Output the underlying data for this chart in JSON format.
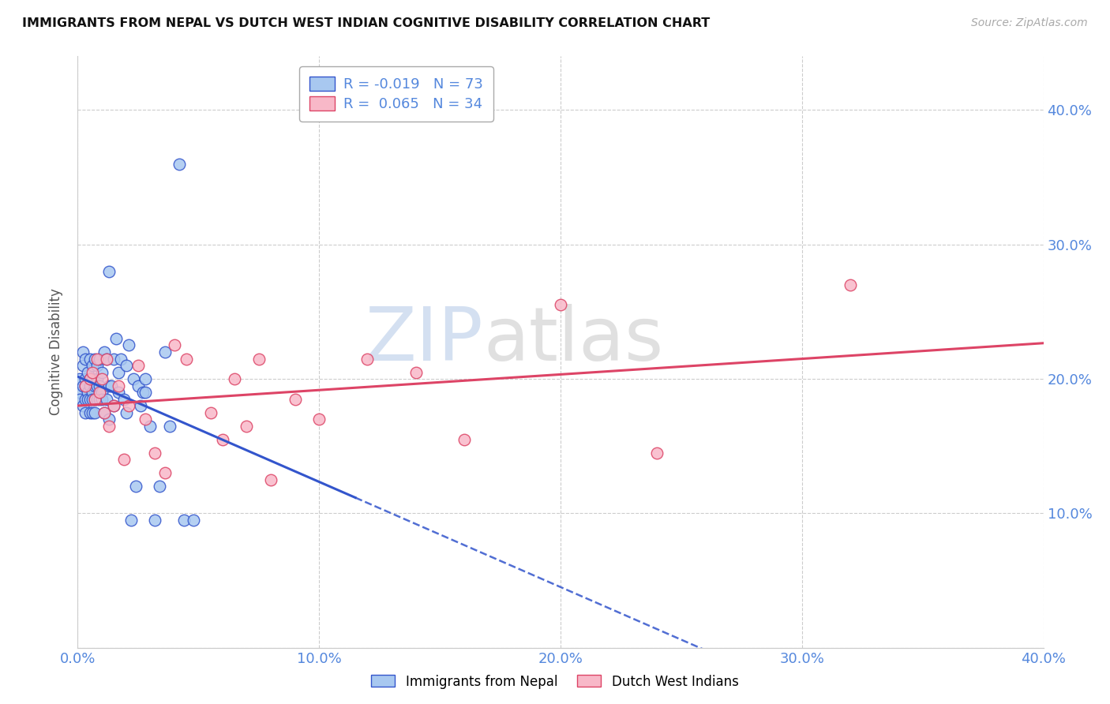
{
  "title": "IMMIGRANTS FROM NEPAL VS DUTCH WEST INDIAN COGNITIVE DISABILITY CORRELATION CHART",
  "source": "Source: ZipAtlas.com",
  "ylabel": "Cognitive Disability",
  "xlim": [
    0.0,
    0.4
  ],
  "ylim": [
    0.0,
    0.44
  ],
  "nepal_R": -0.019,
  "nepal_N": 73,
  "dwi_R": 0.065,
  "dwi_N": 34,
  "nepal_color": "#a8c8f0",
  "dwi_color": "#f8b8c8",
  "trend_nepal_color": "#3355cc",
  "trend_dwi_color": "#dd4466",
  "nepal_scatter_x": [
    0.001,
    0.001,
    0.001,
    0.002,
    0.002,
    0.002,
    0.002,
    0.003,
    0.003,
    0.003,
    0.003,
    0.003,
    0.004,
    0.004,
    0.004,
    0.005,
    0.005,
    0.005,
    0.005,
    0.005,
    0.006,
    0.006,
    0.006,
    0.006,
    0.006,
    0.007,
    0.007,
    0.007,
    0.007,
    0.008,
    0.008,
    0.008,
    0.008,
    0.009,
    0.009,
    0.009,
    0.01,
    0.01,
    0.01,
    0.011,
    0.011,
    0.012,
    0.012,
    0.013,
    0.013,
    0.013,
    0.014,
    0.015,
    0.015,
    0.016,
    0.017,
    0.017,
    0.018,
    0.019,
    0.02,
    0.02,
    0.021,
    0.022,
    0.023,
    0.024,
    0.025,
    0.026,
    0.027,
    0.028,
    0.028,
    0.03,
    0.032,
    0.034,
    0.036,
    0.038,
    0.042,
    0.044,
    0.048
  ],
  "nepal_scatter_y": [
    0.19,
    0.185,
    0.2,
    0.195,
    0.21,
    0.18,
    0.22,
    0.215,
    0.2,
    0.185,
    0.175,
    0.195,
    0.205,
    0.19,
    0.185,
    0.215,
    0.195,
    0.185,
    0.175,
    0.2,
    0.21,
    0.19,
    0.185,
    0.175,
    0.2,
    0.215,
    0.195,
    0.185,
    0.175,
    0.21,
    0.195,
    0.185,
    0.2,
    0.215,
    0.195,
    0.185,
    0.205,
    0.19,
    0.185,
    0.22,
    0.175,
    0.215,
    0.185,
    0.195,
    0.17,
    0.28,
    0.195,
    0.215,
    0.18,
    0.23,
    0.205,
    0.19,
    0.215,
    0.185,
    0.21,
    0.175,
    0.225,
    0.095,
    0.2,
    0.12,
    0.195,
    0.18,
    0.19,
    0.2,
    0.19,
    0.165,
    0.095,
    0.12,
    0.22,
    0.165,
    0.36,
    0.095,
    0.095
  ],
  "dwi_scatter_x": [
    0.003,
    0.005,
    0.006,
    0.007,
    0.008,
    0.009,
    0.01,
    0.011,
    0.012,
    0.013,
    0.015,
    0.017,
    0.019,
    0.021,
    0.025,
    0.028,
    0.032,
    0.036,
    0.04,
    0.045,
    0.055,
    0.06,
    0.065,
    0.07,
    0.075,
    0.08,
    0.09,
    0.1,
    0.12,
    0.14,
    0.16,
    0.2,
    0.24,
    0.32
  ],
  "dwi_scatter_y": [
    0.195,
    0.2,
    0.205,
    0.185,
    0.215,
    0.19,
    0.2,
    0.175,
    0.215,
    0.165,
    0.18,
    0.195,
    0.14,
    0.18,
    0.21,
    0.17,
    0.145,
    0.13,
    0.225,
    0.215,
    0.175,
    0.155,
    0.2,
    0.165,
    0.215,
    0.125,
    0.185,
    0.17,
    0.215,
    0.205,
    0.155,
    0.255,
    0.145,
    0.27
  ],
  "legend_label_nepal": "Immigrants from Nepal",
  "legend_label_dwi": "Dutch West Indians",
  "background_color": "#ffffff",
  "grid_color": "#cccccc",
  "title_color": "#111111",
  "axis_label_color": "#5588dd",
  "watermark_zip_color": "#c0d8f0",
  "watermark_atlas_color": "#c8c8c8"
}
